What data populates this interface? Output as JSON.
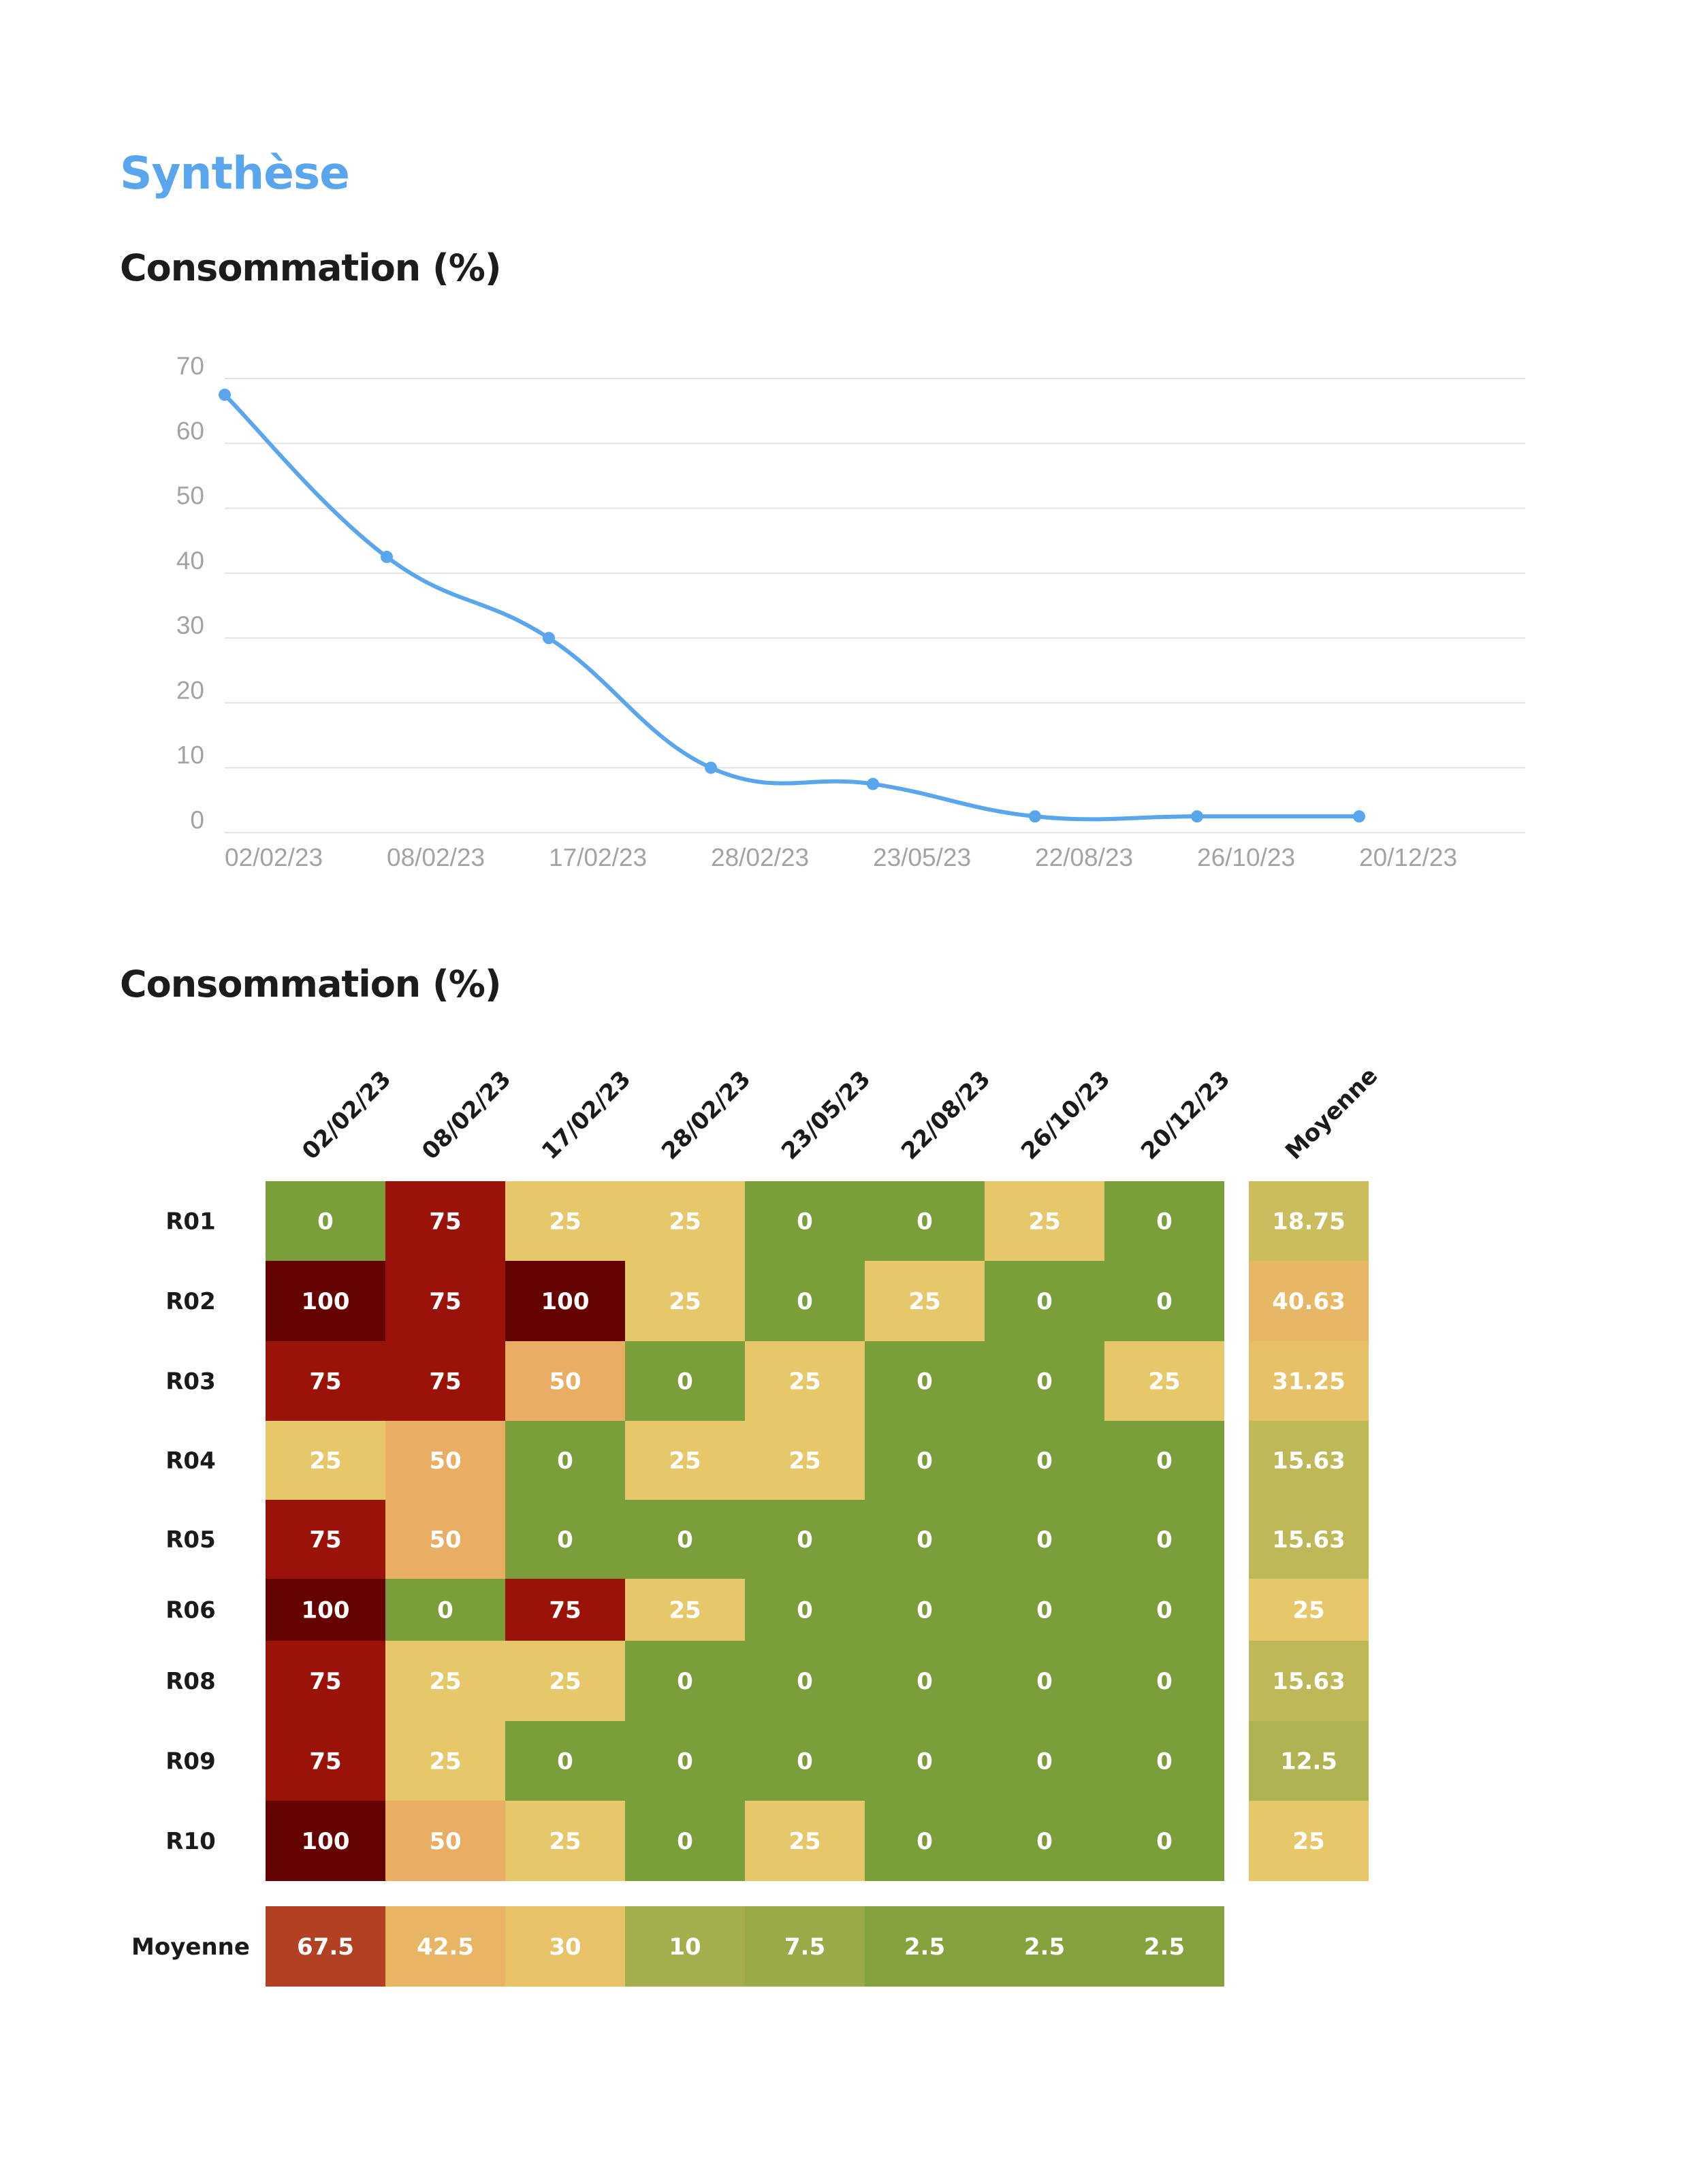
{
  "page_title": "Synthèse",
  "section1_title": "Consommation (%)",
  "section2_title": "Consommation (%)",
  "colors": {
    "title_blue": "#5aa6ee",
    "line_blue": "#5aa6ee",
    "green": "#7a9e39",
    "yellow": "#e6c76a",
    "orange": "#e9ad63",
    "red": "#9a1208",
    "dark_red": "#650300"
  },
  "chart_data": [
    {
      "type": "line",
      "title": "Consommation (%)",
      "x": [
        "02/02/23",
        "08/02/23",
        "17/02/23",
        "28/02/23",
        "23/05/23",
        "22/08/23",
        "26/10/23",
        "20/12/23"
      ],
      "series": [
        {
          "values": [
            67.5,
            42.5,
            30,
            10,
            7.5,
            2.5,
            2.5,
            2.5
          ]
        }
      ],
      "ylim": [
        0,
        70
      ],
      "yticks": [
        0,
        10,
        20,
        30,
        40,
        50,
        60,
        70
      ],
      "grid": true,
      "smooth": true
    },
    {
      "type": "heatmap",
      "title": "Consommation (%)",
      "columns": [
        "02/02/23",
        "08/02/23",
        "17/02/23",
        "28/02/23",
        "23/05/23",
        "22/08/23",
        "26/10/23",
        "20/12/23"
      ],
      "rows": [
        "R01",
        "R02",
        "R03",
        "R04",
        "R05",
        "R06",
        "R08",
        "R09",
        "R10"
      ],
      "values": [
        [
          0,
          75,
          25,
          25,
          0,
          0,
          25,
          0
        ],
        [
          100,
          75,
          100,
          25,
          0,
          25,
          0,
          0
        ],
        [
          75,
          75,
          50,
          0,
          25,
          0,
          0,
          25
        ],
        [
          25,
          50,
          0,
          25,
          25,
          0,
          0,
          0
        ],
        [
          75,
          50,
          0,
          0,
          0,
          0,
          0,
          0
        ],
        [
          100,
          0,
          75,
          25,
          0,
          0,
          0,
          0
        ],
        [
          75,
          25,
          25,
          0,
          0,
          0,
          0,
          0
        ],
        [
          75,
          25,
          0,
          0,
          0,
          0,
          0,
          0
        ],
        [
          100,
          50,
          25,
          0,
          25,
          0,
          0,
          0
        ]
      ],
      "row_average_label": "Moyenne",
      "row_averages": [
        "18.75",
        "40.63",
        "31.25",
        "15.63",
        "15.63",
        "25",
        "15.63",
        "12.5",
        "25"
      ],
      "column_average_label": "Moyenne",
      "column_averages": [
        "67.5",
        "42.5",
        "30",
        "10",
        "7.5",
        "2.5",
        "2.5",
        "2.5"
      ]
    }
  ]
}
